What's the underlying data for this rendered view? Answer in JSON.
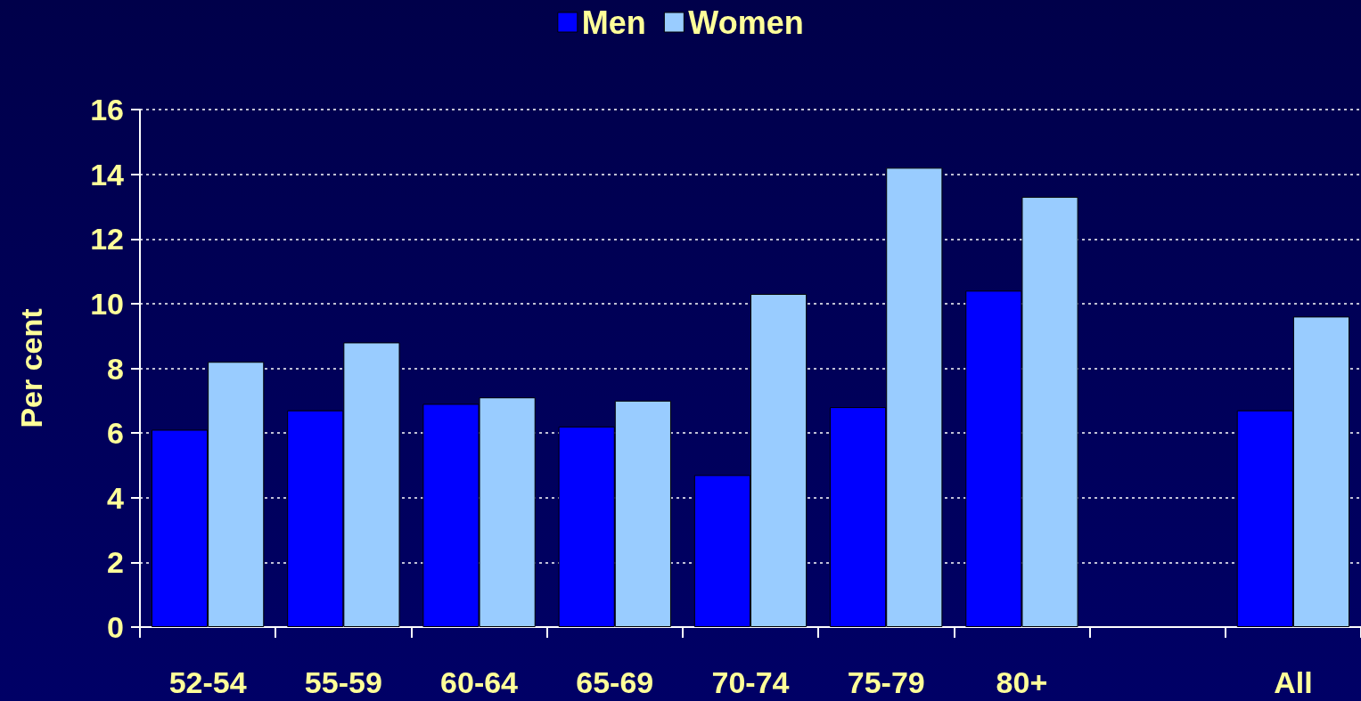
{
  "chart_data": {
    "type": "bar",
    "ylabel": "Per cent",
    "categories": [
      "52-54",
      "55-59",
      "60-64",
      "65-69",
      "70-74",
      "75-79",
      "80+",
      null,
      "All"
    ],
    "series": [
      {
        "name": "Men",
        "color": "#0000ff",
        "values": [
          6.1,
          6.7,
          6.9,
          6.2,
          4.7,
          6.8,
          10.4,
          null,
          6.7
        ]
      },
      {
        "name": "Women",
        "color": "#99ccff",
        "values": [
          8.2,
          8.8,
          7.1,
          7.0,
          10.3,
          14.2,
          13.3,
          null,
          9.6
        ]
      }
    ],
    "ylim": [
      0,
      16
    ],
    "yticks": [
      0,
      2,
      4,
      6,
      8,
      10,
      12,
      14,
      16
    ],
    "grid": "y",
    "legend": "top"
  }
}
